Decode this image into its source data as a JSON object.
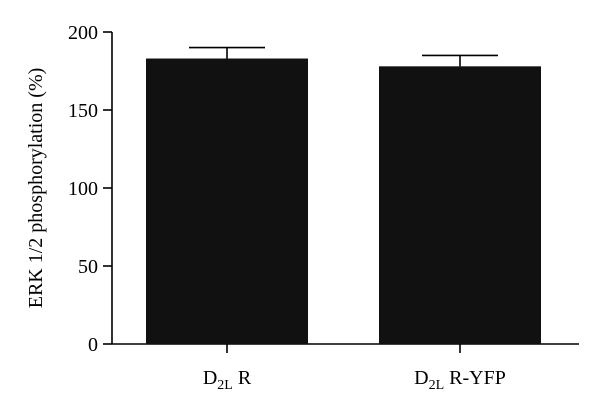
{
  "chart_data": {
    "type": "bar",
    "title": "",
    "xlabel": "",
    "ylabel": "ERK 1/2 phosphorylation (%)",
    "ylim": [
      0,
      200
    ],
    "yticks": [
      0,
      50,
      100,
      150,
      200
    ],
    "grid": false,
    "categories": [
      {
        "main": "D",
        "sub": "2L",
        "rest": " R"
      },
      {
        "main": "D",
        "sub": "2L",
        "rest": " R-YFP"
      }
    ],
    "values": [
      183,
      178
    ],
    "errors": [
      7,
      7
    ],
    "bar_color": "#111111"
  }
}
